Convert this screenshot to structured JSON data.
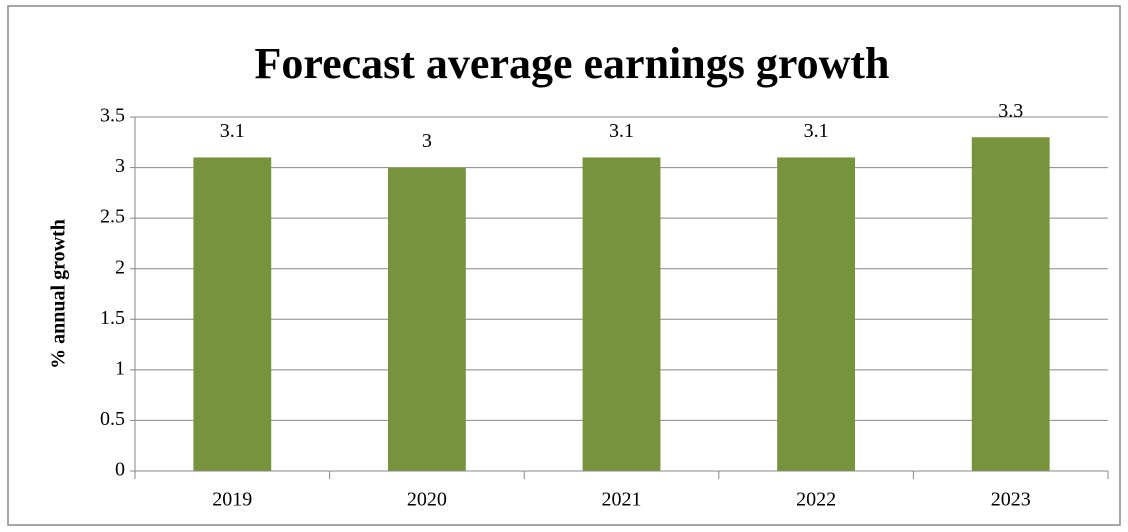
{
  "chart_data": {
    "type": "bar",
    "title": "Forecast average earnings growth",
    "y_label": "% annual growth",
    "categories": [
      "2019",
      "2020",
      "2021",
      "2022",
      "2023"
    ],
    "values": [
      3.1,
      3,
      3.1,
      3.1,
      3.3
    ],
    "color": "#77933c",
    "ylim": [
      0,
      3.5
    ],
    "yticks": [
      0,
      0.5,
      1,
      1.5,
      2,
      2.5,
      3,
      3.5
    ],
    "grid": true
  }
}
